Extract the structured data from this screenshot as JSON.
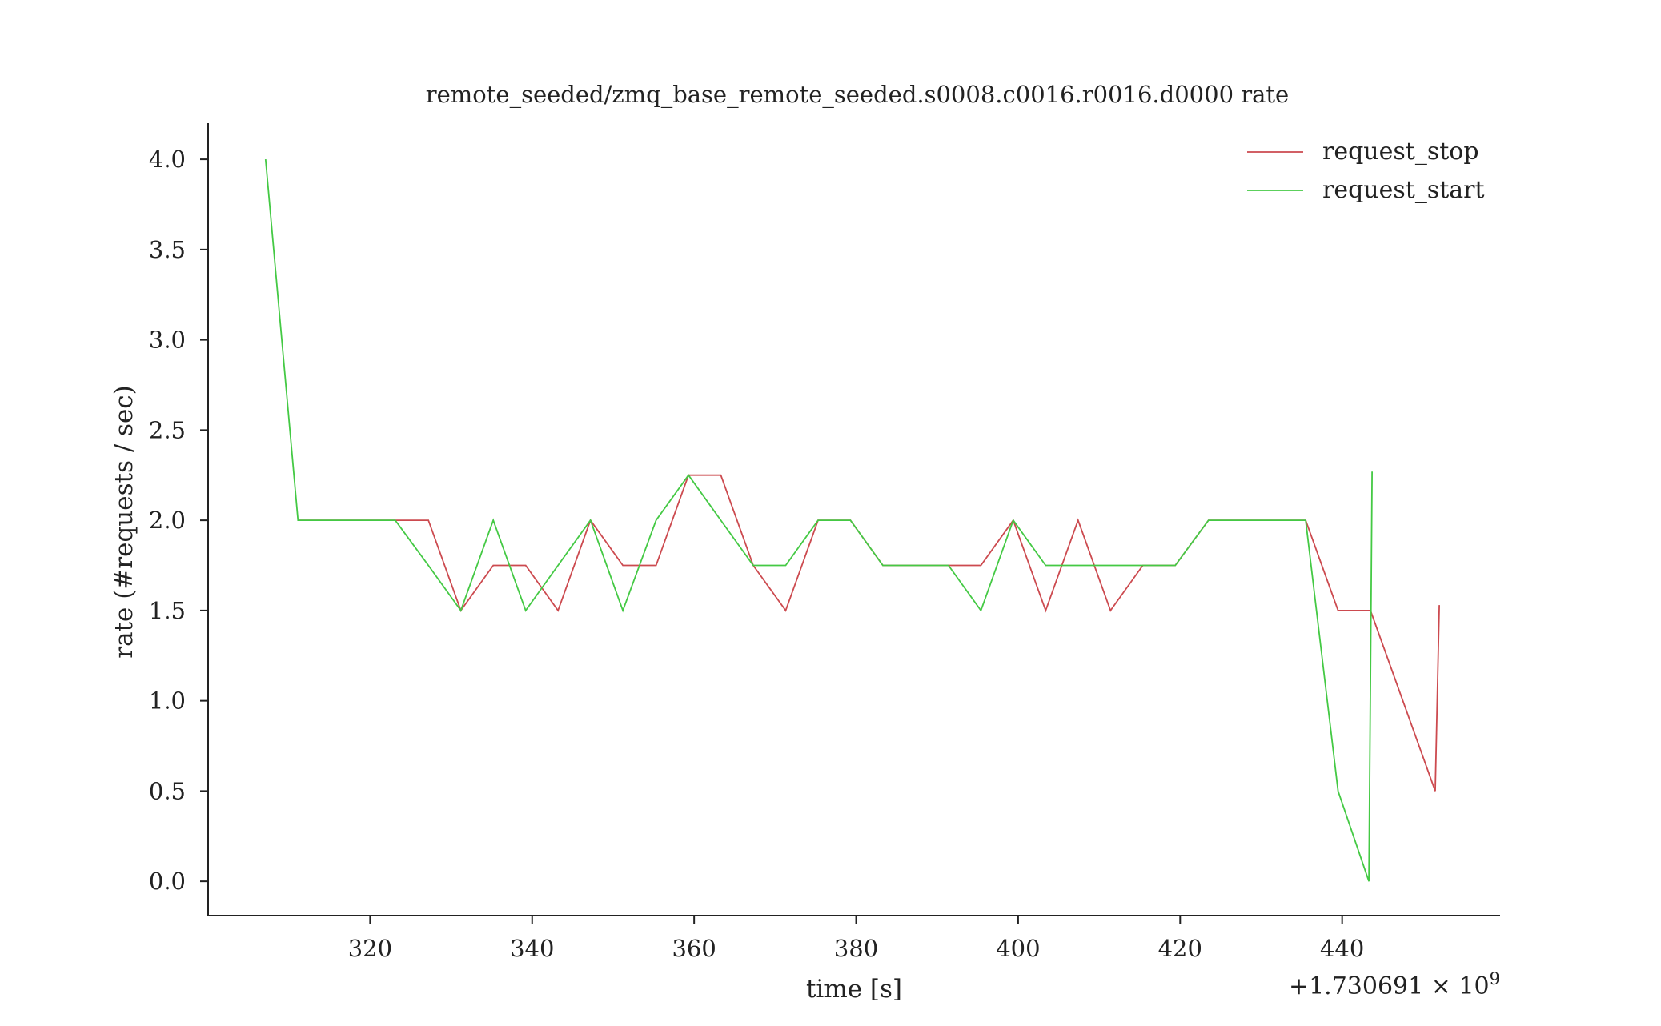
{
  "chart_data": {
    "type": "line",
    "title": "remote_seeded/zmq_base_remote_seeded.s0008.c0016.r0016.d0000 rate",
    "xlabel": "time [s]",
    "ylabel": "rate (#requests / sec)",
    "x_offset_label": "+1.730691 × 10",
    "x_offset_exponent": "9",
    "xlim": [
      300,
      459.5
    ],
    "ylim": [
      -0.19,
      4.2
    ],
    "xticks": [
      320,
      340,
      360,
      380,
      400,
      420,
      440
    ],
    "xtick_labels": [
      "320",
      "340",
      "360",
      "380",
      "400",
      "420",
      "440"
    ],
    "yticks": [
      0.0,
      0.5,
      1.0,
      1.5,
      2.0,
      2.5,
      3.0,
      3.5,
      4.0
    ],
    "ytick_labels": [
      "0.0",
      "0.5",
      "1.0",
      "1.5",
      "2.0",
      "2.5",
      "3.0",
      "3.5",
      "4.0"
    ],
    "grid": false,
    "legend_position": "top-right",
    "series": [
      {
        "name": "request_stop",
        "color": "#cc4a4f",
        "x": [
          311.1,
          315.1,
          319.1,
          323.1,
          327.2,
          331.2,
          335.2,
          339.2,
          343.2,
          347.2,
          351.2,
          355.3,
          359.3,
          363.3,
          367.3,
          371.3,
          375.3,
          379.3,
          383.3,
          387.4,
          391.4,
          395.4,
          399.4,
          403.4,
          407.4,
          411.4,
          415.4,
          419.4,
          423.5,
          427.5,
          431.5,
          435.5,
          439.5,
          443.5,
          451.5,
          452.0
        ],
        "y": [
          2.0,
          2.0,
          2.0,
          2.0,
          2.0,
          1.5,
          1.75,
          1.75,
          1.5,
          2.0,
          1.75,
          1.75,
          2.25,
          2.25,
          1.75,
          1.5,
          2.0,
          2.0,
          1.75,
          1.75,
          1.75,
          1.75,
          2.0,
          1.5,
          2.0,
          1.5,
          1.75,
          1.75,
          2.0,
          2.0,
          2.0,
          2.0,
          1.5,
          1.5,
          0.5,
          1.53
        ]
      },
      {
        "name": "request_start",
        "color": "#44c944",
        "x": [
          307.1,
          311.1,
          315.1,
          319.1,
          323.1,
          327.2,
          331.2,
          335.2,
          339.2,
          343.2,
          347.2,
          351.2,
          355.3,
          359.3,
          363.3,
          367.3,
          371.3,
          375.3,
          379.3,
          383.3,
          387.4,
          391.4,
          395.4,
          399.4,
          403.4,
          407.4,
          411.4,
          415.4,
          419.4,
          423.5,
          427.5,
          431.5,
          435.5,
          439.5,
          443.3,
          443.7
        ],
        "y": [
          4.0,
          2.0,
          2.0,
          2.0,
          2.0,
          1.75,
          1.5,
          2.0,
          1.5,
          1.75,
          2.0,
          1.5,
          2.0,
          2.25,
          2.0,
          1.75,
          1.75,
          2.0,
          2.0,
          1.75,
          1.75,
          1.75,
          1.5,
          2.0,
          1.75,
          1.75,
          1.75,
          1.75,
          1.75,
          2.0,
          2.0,
          2.0,
          2.0,
          0.5,
          0.0,
          2.27
        ]
      }
    ]
  }
}
